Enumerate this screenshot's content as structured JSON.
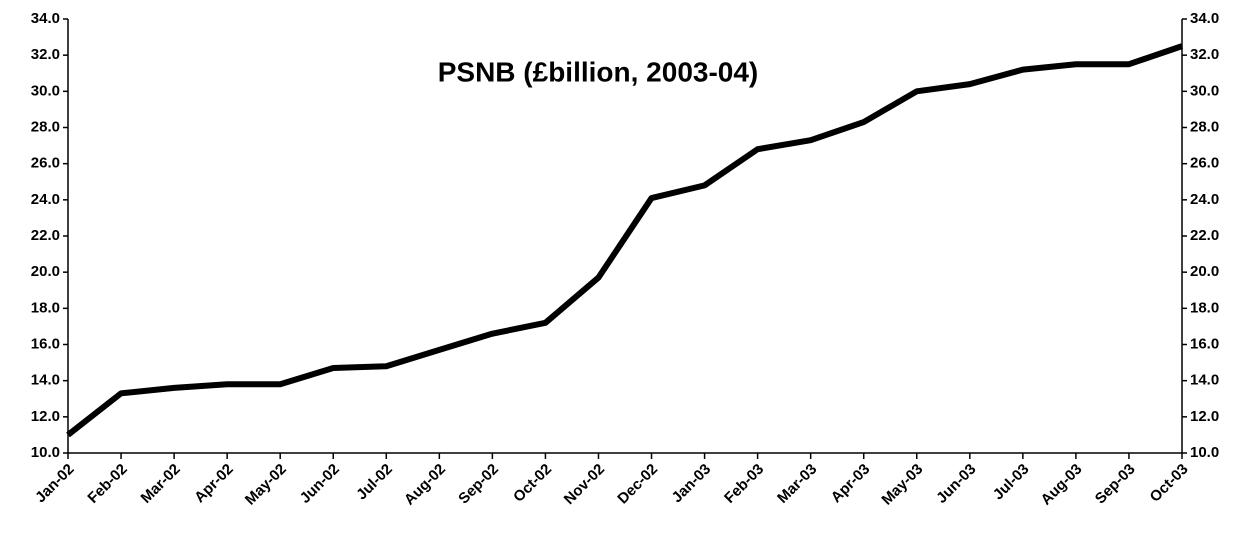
{
  "chart_data": {
    "type": "line",
    "title": "PSNB (£billion, 2003-04)",
    "categories": [
      "Jan-02",
      "Feb-02",
      "Mar-02",
      "Apr-02",
      "May-02",
      "Jun-02",
      "Jul-02",
      "Aug-02",
      "Sep-02",
      "Oct-02",
      "Nov-02",
      "Dec-02",
      "Jan-03",
      "Feb-03",
      "Mar-03",
      "Apr-03",
      "May-03",
      "Jun-03",
      "Jul-03",
      "Aug-03",
      "Sep-03",
      "Oct-03"
    ],
    "values": [
      11.0,
      13.3,
      13.6,
      13.8,
      13.8,
      14.7,
      14.8,
      15.7,
      16.6,
      17.2,
      19.7,
      24.1,
      24.8,
      26.8,
      27.3,
      28.3,
      30.0,
      30.4,
      31.2,
      31.5,
      31.5,
      32.5
    ],
    "color": "#000000",
    "ylim": [
      10,
      34
    ],
    "yticks": [
      {
        "value": 10,
        "label": "10.0"
      },
      {
        "value": 12,
        "label": "12.0"
      },
      {
        "value": 14,
        "label": "14.0"
      },
      {
        "value": 16,
        "label": "16.0"
      },
      {
        "value": 18,
        "label": "18.0"
      },
      {
        "value": 20,
        "label": "20.0"
      },
      {
        "value": 22,
        "label": "22.0"
      },
      {
        "value": 24,
        "label": "24.0"
      },
      {
        "value": 26,
        "label": "26.0"
      },
      {
        "value": 28,
        "label": "28.0"
      },
      {
        "value": 30,
        "label": "30.0"
      },
      {
        "value": 32,
        "label": "32.0"
      },
      {
        "value": 34,
        "label": "34.0"
      }
    ],
    "y2lim": [
      10,
      34
    ],
    "y2ticks": [
      {
        "value": 10,
        "label": "10.0"
      },
      {
        "value": 12,
        "label": "12.0"
      },
      {
        "value": 14,
        "label": "14.0"
      },
      {
        "value": 16,
        "label": "16.0"
      },
      {
        "value": 18,
        "label": "18.0"
      },
      {
        "value": 20,
        "label": "20.0"
      },
      {
        "value": 22,
        "label": "22.0"
      },
      {
        "value": 24,
        "label": "24.0"
      },
      {
        "value": 26,
        "label": "26.0"
      },
      {
        "value": 28,
        "label": "28.0"
      },
      {
        "value": 30,
        "label": "30.0"
      },
      {
        "value": 32,
        "label": "32.0"
      },
      {
        "value": 34,
        "label": "34.0"
      }
    ],
    "grid": false
  }
}
